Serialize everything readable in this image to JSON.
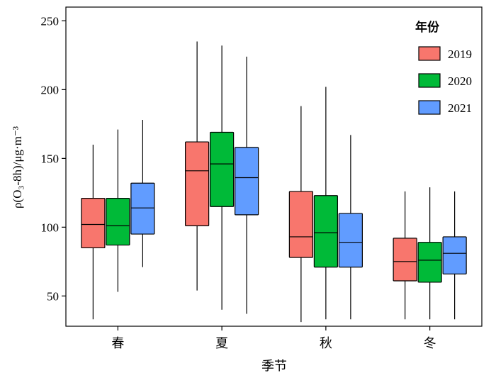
{
  "chart_data": {
    "type": "box",
    "xlabel": "季节",
    "ylabel": "ρ(O₃-8h)/μg·m⁻³",
    "ylim": [
      28,
      260
    ],
    "yticks": [
      50,
      100,
      150,
      200,
      250
    ],
    "categories": [
      "春",
      "夏",
      "秋",
      "冬"
    ],
    "legend": {
      "title": "年份",
      "position": "top-right"
    },
    "series": [
      {
        "name": "2019",
        "color": "#f8766d",
        "boxes": [
          {
            "min": 33,
            "q1": 85,
            "median": 102,
            "q3": 121,
            "max": 160
          },
          {
            "min": 54,
            "q1": 101,
            "median": 141,
            "q3": 162,
            "max": 235
          },
          {
            "min": 31,
            "q1": 78,
            "median": 93,
            "q3": 126,
            "max": 188
          },
          {
            "min": 33,
            "q1": 61,
            "median": 75,
            "q3": 92,
            "max": 126
          }
        ]
      },
      {
        "name": "2020",
        "color": "#00ba38",
        "boxes": [
          {
            "min": 53,
            "q1": 87,
            "median": 101,
            "q3": 121,
            "max": 171
          },
          {
            "min": 40,
            "q1": 115,
            "median": 146,
            "q3": 169,
            "max": 232
          },
          {
            "min": 33,
            "q1": 71,
            "median": 96,
            "q3": 123,
            "max": 202
          },
          {
            "min": 33,
            "q1": 60,
            "median": 76,
            "q3": 89,
            "max": 129
          }
        ]
      },
      {
        "name": "2021",
        "color": "#619cff",
        "boxes": [
          {
            "min": 71,
            "q1": 95,
            "median": 114,
            "q3": 132,
            "max": 178
          },
          {
            "min": 37,
            "q1": 109,
            "median": 136,
            "q3": 158,
            "max": 224
          },
          {
            "min": 33,
            "q1": 71,
            "median": 89,
            "q3": 110,
            "max": 167
          },
          {
            "min": 33,
            "q1": 66,
            "median": 81,
            "q3": 93,
            "max": 126
          }
        ]
      }
    ]
  }
}
